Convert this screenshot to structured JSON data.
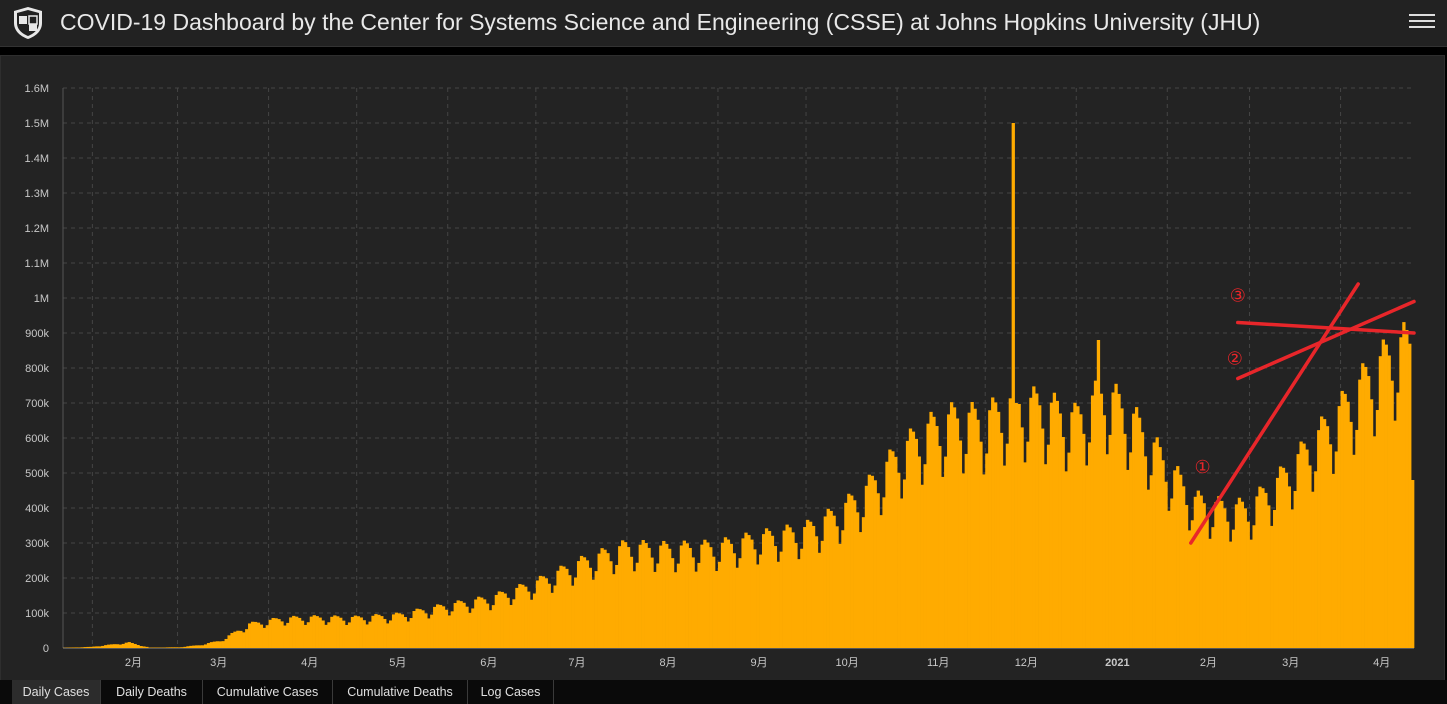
{
  "header": {
    "title": "COVID-19 Dashboard by the Center for Systems Science and Engineering (CSSE) at Johns Hopkins University (JHU)",
    "logo_icon": "university-shield-icon",
    "menu_icon": "hamburger-menu-icon"
  },
  "tabs": [
    {
      "label": "Daily Cases",
      "active": true
    },
    {
      "label": "Daily Deaths",
      "active": false
    },
    {
      "label": "Cumulative Cases",
      "active": false
    },
    {
      "label": "Cumulative Deaths",
      "active": false
    },
    {
      "label": "Log Cases",
      "active": false
    }
  ],
  "chart_data": {
    "type": "bar",
    "title": "",
    "xlabel": "",
    "ylabel": "",
    "x_range": [
      "2020-01-22",
      "2021-04-25"
    ],
    "ylim": [
      0,
      1600000
    ],
    "y_ticks": [
      0,
      100000,
      200000,
      300000,
      400000,
      500000,
      600000,
      700000,
      800000,
      900000,
      1000000,
      1100000,
      1200000,
      1300000,
      1400000,
      1500000,
      1600000
    ],
    "y_tick_labels": [
      "0",
      "100k",
      "200k",
      "300k",
      "400k",
      "500k",
      "600k",
      "700k",
      "800k",
      "900k",
      "1M",
      "1.1M",
      "1.2M",
      "1.3M",
      "1.4M",
      "1.5M",
      "1.6M"
    ],
    "x_ticks": [
      {
        "date": "2020-02-01",
        "label": "2月",
        "bold": false
      },
      {
        "date": "2020-03-01",
        "label": "3月",
        "bold": false
      },
      {
        "date": "2020-04-01",
        "label": "4月",
        "bold": false
      },
      {
        "date": "2020-05-01",
        "label": "5月",
        "bold": false
      },
      {
        "date": "2020-06-01",
        "label": "6月",
        "bold": false
      },
      {
        "date": "2020-07-01",
        "label": "7月",
        "bold": false
      },
      {
        "date": "2020-08-01",
        "label": "8月",
        "bold": false
      },
      {
        "date": "2020-09-01",
        "label": "9月",
        "bold": false
      },
      {
        "date": "2020-10-01",
        "label": "10月",
        "bold": false
      },
      {
        "date": "2020-11-01",
        "label": "11月",
        "bold": false
      },
      {
        "date": "2020-12-01",
        "label": "12月",
        "bold": false
      },
      {
        "date": "2021-01-01",
        "label": "2021",
        "bold": true
      },
      {
        "date": "2021-02-01",
        "label": "2月",
        "bold": false
      },
      {
        "date": "2021-03-01",
        "label": "3月",
        "bold": false
      },
      {
        "date": "2021-04-01",
        "label": "4月",
        "bold": false
      }
    ],
    "grid": true,
    "bar_color": "#ffab00",
    "trend_anchors": [
      {
        "date": "2020-01-22",
        "value": 600
      },
      {
        "date": "2020-01-31",
        "value": 3000
      },
      {
        "date": "2020-02-13",
        "value": 15000
      },
      {
        "date": "2020-02-20",
        "value": 1000
      },
      {
        "date": "2020-03-01",
        "value": 2000
      },
      {
        "date": "2020-03-08",
        "value": 8000
      },
      {
        "date": "2020-03-15",
        "value": 20000
      },
      {
        "date": "2020-03-25",
        "value": 65000
      },
      {
        "date": "2020-04-05",
        "value": 80000
      },
      {
        "date": "2020-04-15",
        "value": 83000
      },
      {
        "date": "2020-04-30",
        "value": 82000
      },
      {
        "date": "2020-05-15",
        "value": 90000
      },
      {
        "date": "2020-05-31",
        "value": 115000
      },
      {
        "date": "2020-06-15",
        "value": 135000
      },
      {
        "date": "2020-06-30",
        "value": 175000
      },
      {
        "date": "2020-07-15",
        "value": 230000
      },
      {
        "date": "2020-07-31",
        "value": 275000
      },
      {
        "date": "2020-08-15",
        "value": 270000
      },
      {
        "date": "2020-08-31",
        "value": 275000
      },
      {
        "date": "2020-09-15",
        "value": 300000
      },
      {
        "date": "2020-09-30",
        "value": 320000
      },
      {
        "date": "2020-10-10",
        "value": 360000
      },
      {
        "date": "2020-10-20",
        "value": 420000
      },
      {
        "date": "2020-10-31",
        "value": 520000
      },
      {
        "date": "2020-11-10",
        "value": 590000
      },
      {
        "date": "2020-11-20",
        "value": 625000
      },
      {
        "date": "2020-11-30",
        "value": 620000
      },
      {
        "date": "2020-12-10",
        "value": 665000
      },
      {
        "date": "2020-12-20",
        "value": 660000
      },
      {
        "date": "2020-12-31",
        "value": 620000
      },
      {
        "date": "2021-01-10",
        "value": 700000
      },
      {
        "date": "2021-01-20",
        "value": 620000
      },
      {
        "date": "2021-01-31",
        "value": 500000
      },
      {
        "date": "2021-02-10",
        "value": 400000
      },
      {
        "date": "2021-02-20",
        "value": 380000
      },
      {
        "date": "2021-02-28",
        "value": 380000
      },
      {
        "date": "2021-03-10",
        "value": 450000
      },
      {
        "date": "2021-03-20",
        "value": 540000
      },
      {
        "date": "2021-03-31",
        "value": 640000
      },
      {
        "date": "2021-04-10",
        "value": 740000
      },
      {
        "date": "2021-04-20",
        "value": 820000
      },
      {
        "date": "2021-04-25",
        "value": 830000
      }
    ],
    "spikes": [
      {
        "date": "2020-12-10",
        "value": 1500000
      },
      {
        "date": "2020-12-11",
        "value": 700000
      },
      {
        "date": "2021-01-08",
        "value": 880000
      }
    ],
    "last_value": {
      "date": "2021-04-25",
      "value": 480000
    },
    "annotations": [
      {
        "label": "①",
        "color": "#e8262a",
        "line": [
          {
            "date": "2021-02-09",
            "value": 300000
          },
          {
            "date": "2021-04-07",
            "value": 1040000
          }
        ],
        "text_at": {
          "date": "2021-02-13",
          "value": 500000
        }
      },
      {
        "label": "②",
        "color": "#e8262a",
        "line": [
          {
            "date": "2021-02-25",
            "value": 770000
          },
          {
            "date": "2021-04-26",
            "value": 990000
          }
        ],
        "text_at": {
          "date": "2021-02-24",
          "value": 810000
        }
      },
      {
        "label": "③",
        "color": "#e8262a",
        "line": [
          {
            "date": "2021-02-25",
            "value": 930000
          },
          {
            "date": "2021-04-26",
            "value": 900000
          }
        ],
        "text_at": {
          "date": "2021-02-25",
          "value": 990000
        }
      }
    ]
  }
}
